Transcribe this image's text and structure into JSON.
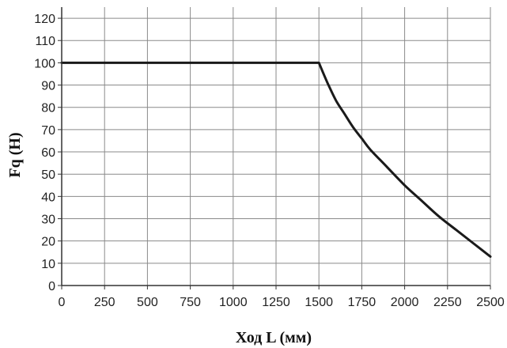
{
  "chart_data": {
    "type": "line",
    "xlabel": "Ход L (мм)",
    "ylabel": "Fq (H)",
    "xlim": [
      0,
      2500
    ],
    "ylim": [
      0,
      125
    ],
    "x_ticks": [
      "0",
      "250",
      "500",
      "750",
      "1000",
      "1250",
      "1500",
      "1750",
      "2000",
      "2250",
      "2500"
    ],
    "y_ticks": [
      "0",
      "10",
      "20",
      "30",
      "40",
      "50",
      "60",
      "70",
      "80",
      "90",
      "100",
      "110",
      "120"
    ],
    "grid": true,
    "series": [
      {
        "color": "#1a1a1a",
        "points": [
          [
            0,
            100
          ],
          [
            1500,
            100
          ],
          [
            1550,
            91
          ],
          [
            1600,
            83
          ],
          [
            1650,
            77
          ],
          [
            1700,
            71
          ],
          [
            1750,
            66
          ],
          [
            1800,
            61
          ],
          [
            1900,
            53
          ],
          [
            2000,
            45
          ],
          [
            2100,
            38
          ],
          [
            2200,
            31
          ],
          [
            2300,
            25
          ],
          [
            2400,
            19
          ],
          [
            2500,
            13
          ]
        ]
      }
    ]
  }
}
